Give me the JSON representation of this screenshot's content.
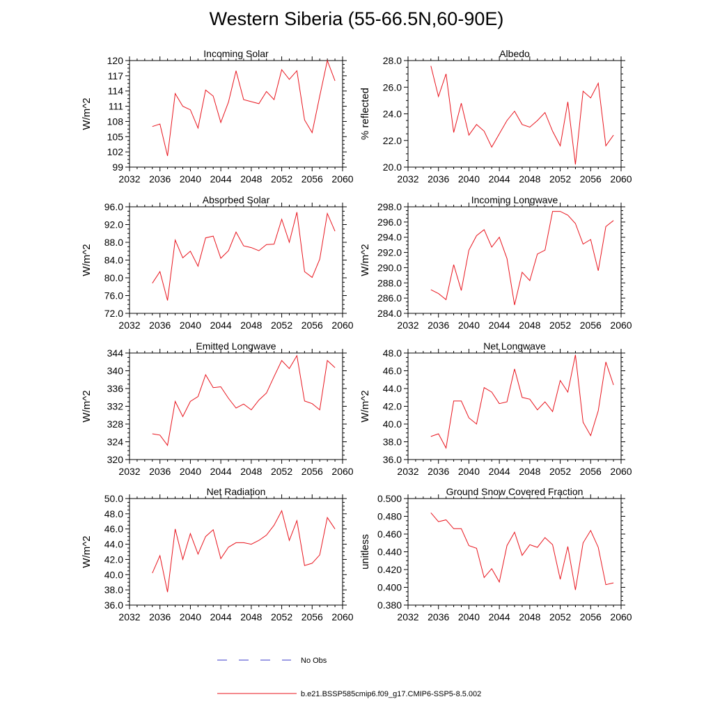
{
  "page_title": "Western Siberia (55-66.5N,60-90E)",
  "colors": {
    "model_line": "#e8141d",
    "obs_line": "#3a3ac8",
    "axis": "#000000"
  },
  "legend": [
    {
      "label": "No Obs",
      "style": "dashed",
      "color": "#3a3ac8"
    },
    {
      "label": "b.e21.BSSP585cmip6.f09_g17.CMIP6-SSP5-8.5.002",
      "style": "solid",
      "color": "#e8141d"
    }
  ],
  "chart_data": [
    {
      "type": "line",
      "title": "Incoming Solar",
      "ylabel": "W/m^2",
      "xlim": [
        2032,
        2060
      ],
      "ylim": [
        99,
        120
      ],
      "xticks": [
        "2032",
        "2036",
        "2040",
        "2044",
        "2048",
        "2052",
        "2056",
        "2060"
      ],
      "yticks": [
        "99",
        "102",
        "105",
        "108",
        "111",
        "114",
        "117",
        "120"
      ],
      "x": [
        2035,
        2036,
        2037,
        2038,
        2039,
        2040,
        2041,
        2042,
        2043,
        2044,
        2045,
        2046,
        2047,
        2048,
        2049,
        2050,
        2051,
        2052,
        2053,
        2054,
        2055,
        2056,
        2057,
        2058,
        2059
      ],
      "series": [
        {
          "values": [
            107.0,
            107.5,
            101.2,
            113.5,
            111.0,
            110.3,
            106.7,
            114.2,
            113.0,
            107.8,
            111.8,
            118.0,
            112.3,
            111.9,
            111.5,
            113.9,
            112.3,
            118.2,
            116.3,
            118.0,
            108.3,
            105.8,
            113.0,
            120.0,
            116.0
          ]
        }
      ]
    },
    {
      "type": "line",
      "title": "Albedo",
      "ylabel": "% reflected",
      "xlim": [
        2032,
        2060
      ],
      "ylim": [
        20.0,
        28.0
      ],
      "xticks": [
        "2032",
        "2036",
        "2040",
        "2044",
        "2048",
        "2052",
        "2056",
        "2060"
      ],
      "yticks": [
        "20.0",
        "22.0",
        "24.0",
        "26.0",
        "28.0"
      ],
      "x": [
        2035,
        2036,
        2037,
        2038,
        2039,
        2040,
        2041,
        2042,
        2043,
        2044,
        2045,
        2046,
        2047,
        2048,
        2049,
        2050,
        2051,
        2052,
        2053,
        2054,
        2055,
        2056,
        2057,
        2058,
        2059
      ],
      "series": [
        {
          "values": [
            27.6,
            25.3,
            27.0,
            22.6,
            24.8,
            22.4,
            23.2,
            22.7,
            21.5,
            22.5,
            23.5,
            24.2,
            23.2,
            23.0,
            23.5,
            24.1,
            22.7,
            21.6,
            24.9,
            20.2,
            25.7,
            25.2,
            26.3,
            21.6,
            22.4
          ]
        }
      ]
    },
    {
      "type": "line",
      "title": "Absorbed Solar",
      "ylabel": "W/m^2",
      "xlim": [
        2032,
        2060
      ],
      "ylim": [
        72.0,
        96.0
      ],
      "xticks": [
        "2032",
        "2036",
        "2040",
        "2044",
        "2048",
        "2052",
        "2056",
        "2060"
      ],
      "yticks": [
        "72.0",
        "76.0",
        "80.0",
        "84.0",
        "88.0",
        "92.0",
        "96.0"
      ],
      "x": [
        2035,
        2036,
        2037,
        2038,
        2039,
        2040,
        2041,
        2042,
        2043,
        2044,
        2045,
        2046,
        2047,
        2048,
        2049,
        2050,
        2051,
        2052,
        2053,
        2054,
        2055,
        2056,
        2057,
        2058,
        2059
      ],
      "series": [
        {
          "values": [
            78.8,
            81.4,
            74.9,
            88.5,
            84.5,
            86.0,
            82.6,
            89.0,
            89.4,
            84.4,
            86.1,
            90.3,
            87.2,
            86.8,
            86.1,
            87.5,
            87.6,
            93.2,
            88.0,
            94.8,
            81.4,
            80.1,
            84.2,
            94.5,
            90.5
          ]
        }
      ]
    },
    {
      "type": "line",
      "title": "Incoming Longwave",
      "ylabel": "W/m^2",
      "xlim": [
        2032,
        2060
      ],
      "ylim": [
        284.0,
        298.0
      ],
      "xticks": [
        "2032",
        "2036",
        "2040",
        "2044",
        "2048",
        "2052",
        "2056",
        "2060"
      ],
      "yticks": [
        "284.0",
        "286.0",
        "288.0",
        "290.0",
        "292.0",
        "294.0",
        "296.0",
        "298.0"
      ],
      "x": [
        2035,
        2036,
        2037,
        2038,
        2039,
        2040,
        2041,
        2042,
        2043,
        2044,
        2045,
        2046,
        2047,
        2048,
        2049,
        2050,
        2051,
        2052,
        2053,
        2054,
        2055,
        2056,
        2057,
        2058,
        2059
      ],
      "series": [
        {
          "values": [
            287.1,
            286.6,
            285.8,
            290.4,
            287.0,
            292.3,
            294.2,
            295.0,
            292.7,
            294.0,
            291.2,
            285.1,
            289.4,
            288.3,
            291.8,
            292.3,
            297.4,
            297.4,
            296.9,
            295.8,
            293.1,
            293.7,
            289.6,
            295.4,
            296.2
          ]
        }
      ]
    },
    {
      "type": "line",
      "title": "Emitted Longwave",
      "ylabel": "W/m^2",
      "xlim": [
        2032,
        2060
      ],
      "ylim": [
        320,
        344
      ],
      "xticks": [
        "2032",
        "2036",
        "2040",
        "2044",
        "2048",
        "2052",
        "2056",
        "2060"
      ],
      "yticks": [
        "320",
        "324",
        "328",
        "332",
        "336",
        "340",
        "344"
      ],
      "x": [
        2035,
        2036,
        2037,
        2038,
        2039,
        2040,
        2041,
        2042,
        2043,
        2044,
        2045,
        2046,
        2047,
        2048,
        2049,
        2050,
        2051,
        2052,
        2053,
        2054,
        2055,
        2056,
        2057,
        2058,
        2059
      ],
      "series": [
        {
          "values": [
            325.8,
            325.5,
            323.2,
            333.1,
            329.7,
            333.1,
            334.2,
            339.1,
            336.2,
            336.4,
            333.8,
            331.6,
            332.5,
            331.2,
            333.4,
            335.0,
            338.7,
            342.3,
            340.5,
            343.4,
            333.2,
            332.6,
            331.2,
            342.3,
            340.7
          ]
        }
      ]
    },
    {
      "type": "line",
      "title": "Net Longwave",
      "ylabel": "W/m^2",
      "xlim": [
        2032,
        2060
      ],
      "ylim": [
        36.0,
        48.0
      ],
      "xticks": [
        "2032",
        "2036",
        "2040",
        "2044",
        "2048",
        "2052",
        "2056",
        "2060"
      ],
      "yticks": [
        "36.0",
        "38.0",
        "40.0",
        "42.0",
        "44.0",
        "46.0",
        "48.0"
      ],
      "x": [
        2035,
        2036,
        2037,
        2038,
        2039,
        2040,
        2041,
        2042,
        2043,
        2044,
        2045,
        2046,
        2047,
        2048,
        2049,
        2050,
        2051,
        2052,
        2053,
        2054,
        2055,
        2056,
        2057,
        2058,
        2059
      ],
      "series": [
        {
          "values": [
            38.6,
            38.9,
            37.3,
            42.6,
            42.6,
            40.7,
            40.0,
            44.1,
            43.6,
            42.3,
            42.5,
            46.2,
            43.0,
            42.8,
            41.6,
            42.5,
            41.4,
            44.9,
            43.6,
            47.8,
            40.2,
            38.7,
            41.5,
            47.0,
            44.4
          ]
        }
      ]
    },
    {
      "type": "line",
      "title": "Net Radiation",
      "ylabel": "W/m^2",
      "xlim": [
        2032,
        2060
      ],
      "ylim": [
        36.0,
        50.0
      ],
      "xticks": [
        "2032",
        "2036",
        "2040",
        "2044",
        "2048",
        "2052",
        "2056",
        "2060"
      ],
      "yticks": [
        "36.0",
        "38.0",
        "40.0",
        "42.0",
        "44.0",
        "46.0",
        "48.0",
        "50.0"
      ],
      "x": [
        2035,
        2036,
        2037,
        2038,
        2039,
        2040,
        2041,
        2042,
        2043,
        2044,
        2045,
        2046,
        2047,
        2048,
        2049,
        2050,
        2051,
        2052,
        2053,
        2054,
        2055,
        2056,
        2057,
        2058,
        2059
      ],
      "series": [
        {
          "values": [
            40.2,
            42.5,
            37.7,
            46.0,
            42.0,
            45.4,
            42.7,
            45.0,
            45.9,
            42.1,
            43.6,
            44.2,
            44.2,
            44.0,
            44.5,
            45.2,
            46.5,
            48.4,
            44.5,
            47.1,
            41.2,
            41.5,
            42.6,
            47.5,
            46.0
          ]
        }
      ]
    },
    {
      "type": "line",
      "title": "Ground Snow Covered Fraction",
      "ylabel": "unitless",
      "xlim": [
        2032,
        2060
      ],
      "ylim": [
        0.38,
        0.5
      ],
      "xticks": [
        "2032",
        "2036",
        "2040",
        "2044",
        "2048",
        "2052",
        "2056",
        "2060"
      ],
      "yticks": [
        "0.380",
        "0.400",
        "0.420",
        "0.440",
        "0.460",
        "0.480",
        "0.500"
      ],
      "x": [
        2035,
        2036,
        2037,
        2038,
        2039,
        2040,
        2041,
        2042,
        2043,
        2044,
        2045,
        2046,
        2047,
        2048,
        2049,
        2050,
        2051,
        2052,
        2053,
        2054,
        2055,
        2056,
        2057,
        2058,
        2059
      ],
      "series": [
        {
          "values": [
            0.484,
            0.474,
            0.476,
            0.466,
            0.466,
            0.447,
            0.444,
            0.411,
            0.421,
            0.406,
            0.447,
            0.462,
            0.436,
            0.448,
            0.445,
            0.456,
            0.448,
            0.409,
            0.446,
            0.397,
            0.45,
            0.464,
            0.445,
            0.403,
            0.405
          ]
        }
      ]
    }
  ]
}
